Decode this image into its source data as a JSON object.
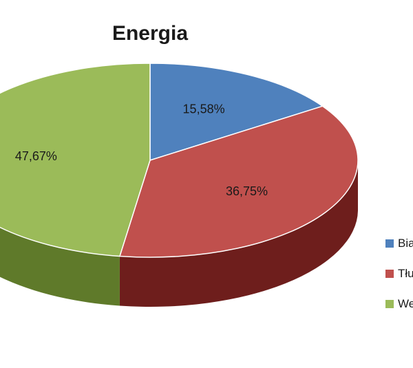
{
  "chart_data": {
    "type": "pie",
    "style": "3d",
    "title": "Energia",
    "slices": [
      {
        "name": "Bia",
        "label": "15,58%",
        "value": 15.58,
        "color": "#4f81bd",
        "side_color": "#2c4d75"
      },
      {
        "name": "Tłu",
        "label": "36,75%",
        "value": 36.75,
        "color": "#c0504d",
        "side_color": "#6e1e1c"
      },
      {
        "name": "We",
        "label": "47,67%",
        "value": 47.67,
        "color": "#9bbb59",
        "side_color": "#5f7a2a"
      }
    ],
    "legend_position": "right"
  }
}
